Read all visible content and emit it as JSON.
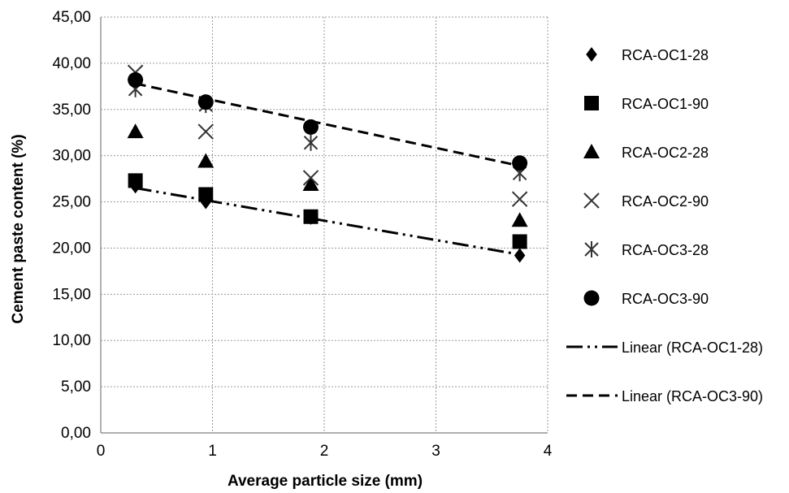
{
  "chart_data": {
    "type": "scatter",
    "xlabel": "Average particle size (mm)",
    "ylabel": "Cement paste content (%)",
    "xlim": [
      0,
      4
    ],
    "ylim": [
      0,
      45
    ],
    "x_ticks": [
      "0",
      "1",
      "2",
      "3",
      "4"
    ],
    "y_ticks": [
      "0,00",
      "5,00",
      "10,00",
      "15,00",
      "20,00",
      "25,00",
      "30,00",
      "35,00",
      "40,00",
      "45,00"
    ],
    "grid": true,
    "legend_position": "right",
    "series": [
      {
        "name": "RCA-OC1-28",
        "marker": "diamond",
        "color": "#000000",
        "x": [
          0.31,
          0.94,
          1.88,
          3.75
        ],
        "y": [
          26.7,
          25.0,
          23.3,
          19.2
        ]
      },
      {
        "name": "RCA-OC1-90",
        "marker": "square",
        "color": "#000000",
        "x": [
          0.31,
          0.94,
          1.88,
          3.75
        ],
        "y": [
          27.3,
          25.8,
          23.4,
          20.7
        ]
      },
      {
        "name": "RCA-OC2-28",
        "marker": "triangle",
        "color": "#000000",
        "x": [
          0.31,
          0.94,
          1.88,
          3.75
        ],
        "y": [
          32.6,
          29.4,
          26.9,
          23.0
        ]
      },
      {
        "name": "RCA-OC2-90",
        "marker": "x",
        "color": "#000000",
        "x": [
          0.31,
          0.94,
          1.88,
          3.75
        ],
        "y": [
          39.0,
          32.6,
          27.6,
          25.3
        ]
      },
      {
        "name": "RCA-OC3-28",
        "marker": "asterisk",
        "color": "#000000",
        "x": [
          0.31,
          0.94,
          1.88,
          3.75
        ],
        "y": [
          37.2,
          35.5,
          31.4,
          28.1
        ]
      },
      {
        "name": "RCA-OC3-90",
        "marker": "circle",
        "color": "#000000",
        "x": [
          0.31,
          0.94,
          1.88,
          3.75
        ],
        "y": [
          38.2,
          35.8,
          33.1,
          29.2
        ]
      }
    ],
    "trendlines": [
      {
        "name": "Linear (RCA-OC1-28)",
        "style": "dash-dot-dot",
        "x": [
          0.31,
          3.75
        ],
        "y": [
          26.5,
          19.3
        ]
      },
      {
        "name": "Linear (RCA-OC3-90)",
        "style": "dashed",
        "x": [
          0.31,
          3.75
        ],
        "y": [
          37.8,
          28.9
        ]
      }
    ]
  }
}
